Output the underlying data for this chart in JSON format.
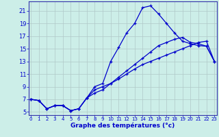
{
  "xlabel": "Graphe des températures (°c)",
  "x_ticks": [
    0,
    1,
    2,
    3,
    4,
    5,
    6,
    7,
    8,
    9,
    10,
    11,
    12,
    13,
    14,
    15,
    16,
    17,
    18,
    19,
    20,
    21,
    22,
    23
  ],
  "y_ticks": [
    5,
    7,
    9,
    11,
    13,
    15,
    17,
    19,
    21
  ],
  "bg_color": "#cceee8",
  "grid_color": "#b0c8c8",
  "line_color": "#0000cc",
  "line1_x": [
    0,
    1,
    2,
    3,
    4,
    5,
    6,
    7,
    8,
    9,
    10,
    11,
    12,
    13,
    14,
    15,
    16,
    17,
    18,
    19,
    20,
    21,
    22,
    23
  ],
  "line1_y": [
    7.0,
    6.8,
    5.5,
    6.0,
    6.0,
    5.2,
    5.5,
    7.2,
    9.0,
    9.5,
    13.0,
    15.2,
    17.5,
    19.0,
    21.5,
    21.8,
    20.5,
    19.0,
    17.5,
    16.2,
    15.8,
    15.5,
    15.4,
    13.0
  ],
  "line2_x": [
    0,
    1,
    2,
    3,
    4,
    5,
    6,
    7,
    8,
    9,
    10,
    11,
    12,
    13,
    14,
    15,
    16,
    17,
    18,
    19,
    20,
    21,
    22,
    23
  ],
  "line2_y": [
    7.0,
    6.8,
    5.5,
    6.0,
    6.0,
    5.2,
    5.5,
    7.2,
    8.5,
    9.0,
    9.5,
    10.5,
    11.5,
    12.5,
    13.5,
    14.5,
    15.5,
    16.0,
    16.5,
    16.8,
    16.0,
    15.8,
    15.4,
    13.0
  ],
  "line3_x": [
    0,
    1,
    2,
    3,
    4,
    5,
    6,
    7,
    8,
    9,
    10,
    11,
    12,
    13,
    14,
    15,
    16,
    17,
    18,
    19,
    20,
    21,
    22,
    23
  ],
  "line3_y": [
    7.0,
    6.8,
    5.5,
    6.0,
    6.0,
    5.2,
    5.5,
    7.2,
    8.0,
    8.5,
    9.5,
    10.2,
    11.0,
    11.8,
    12.5,
    13.0,
    13.5,
    14.0,
    14.5,
    15.0,
    15.5,
    16.0,
    16.2,
    13.0
  ]
}
